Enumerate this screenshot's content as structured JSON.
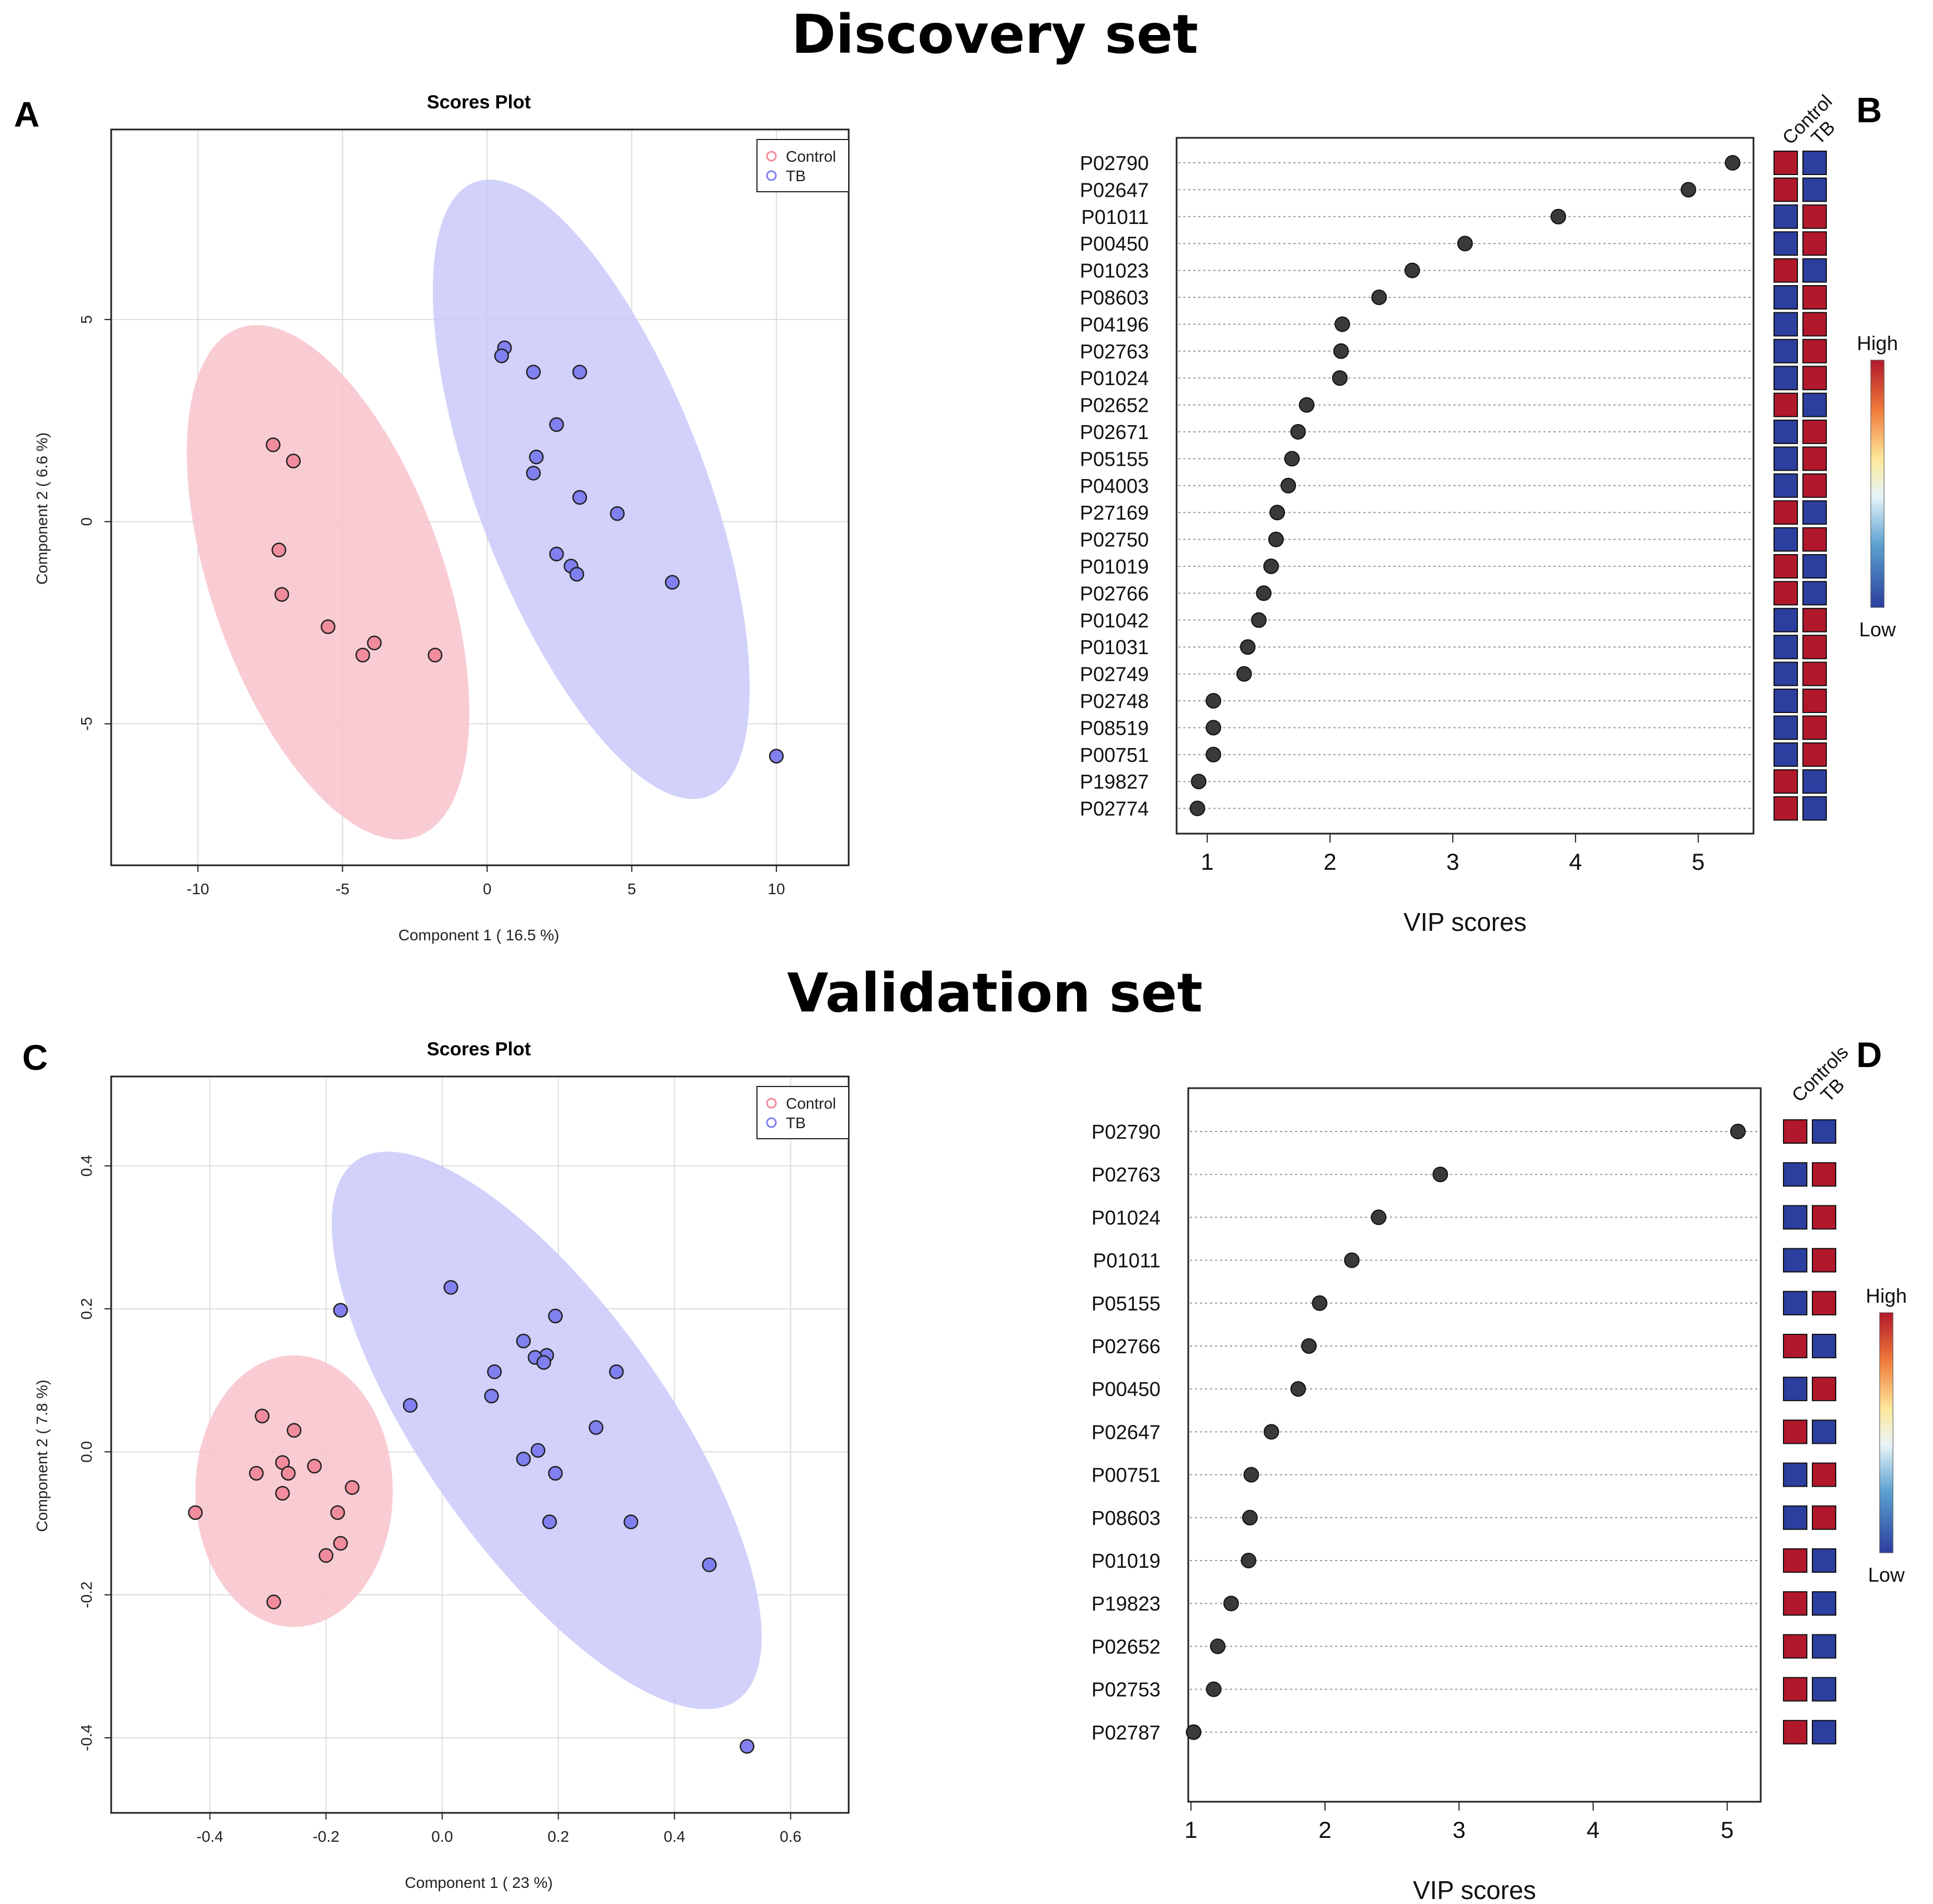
{
  "titles": {
    "discovery": "Discovery set",
    "validation": "Validation set"
  },
  "panel_letters": {
    "A": "A",
    "B": "B",
    "C": "C",
    "D": "D"
  },
  "colors": {
    "control_fill": "#f08c9c",
    "control_ellipse": "#f8c3cd",
    "tb_fill": "#8080f0",
    "tb_ellipse": "#c9c9fa",
    "heat_high": "#b2182b",
    "heat_low": "#2c3e9e",
    "vip_dot": "#3a3a3a"
  },
  "chart_data": [
    {
      "id": "A",
      "type": "scatter",
      "title": "Scores Plot",
      "xlabel": "Component 1 ( 16.5 %)",
      "ylabel": "Component 2 ( 6.6 %)",
      "xlim": [
        -13,
        12.5
      ],
      "ylim": [
        -8.5,
        9.7
      ],
      "xticks": [
        -10,
        -5,
        0,
        5,
        10
      ],
      "yticks": [
        -5,
        0,
        5
      ],
      "legend": [
        "Control",
        "TB"
      ],
      "legend_position": "top-right",
      "series": [
        {
          "name": "Control",
          "ellipse": {
            "center": [
              -5.5,
              -1.5
            ],
            "semi_major": 7.0,
            "semi_minor": 3.7,
            "angle_deg": -64
          },
          "points": [
            [
              -7.4,
              1.9
            ],
            [
              -6.7,
              1.5
            ],
            [
              -7.2,
              -0.7
            ],
            [
              -7.1,
              -1.8
            ],
            [
              -5.5,
              -2.6
            ],
            [
              -3.9,
              -3.0
            ],
            [
              -4.3,
              -3.3
            ],
            [
              -1.8,
              -3.3
            ]
          ]
        },
        {
          "name": "TB",
          "ellipse": {
            "center": [
              3.6,
              0.8
            ],
            "semi_major": 8.6,
            "semi_minor": 3.6,
            "angle_deg": -62
          },
          "points": [
            [
              0.6,
              4.3
            ],
            [
              0.5,
              4.1
            ],
            [
              1.6,
              3.7
            ],
            [
              3.2,
              3.7
            ],
            [
              2.4,
              2.4
            ],
            [
              1.7,
              1.6
            ],
            [
              1.6,
              1.2
            ],
            [
              3.2,
              0.6
            ],
            [
              4.5,
              0.2
            ],
            [
              2.4,
              -0.8
            ],
            [
              2.9,
              -1.1
            ],
            [
              3.1,
              -1.3
            ],
            [
              6.4,
              -1.5
            ],
            [
              10.0,
              -5.8
            ]
          ]
        }
      ]
    },
    {
      "id": "B",
      "type": "dot",
      "xlabel": "VIP scores",
      "xlim": [
        0.75,
        5.45
      ],
      "xticks": [
        1,
        2,
        3,
        4,
        5
      ],
      "heatmap_columns": [
        "Control",
        "TB"
      ],
      "colorbar_labels": [
        "High",
        "Low"
      ],
      "items": [
        {
          "protein": "P02790",
          "vip": 5.28,
          "control": "high",
          "tb": "low"
        },
        {
          "protein": "P02647",
          "vip": 4.92,
          "control": "high",
          "tb": "low"
        },
        {
          "protein": "P01011",
          "vip": 3.86,
          "control": "low",
          "tb": "high"
        },
        {
          "protein": "P00450",
          "vip": 3.1,
          "control": "low",
          "tb": "high"
        },
        {
          "protein": "P01023",
          "vip": 2.67,
          "control": "high",
          "tb": "low"
        },
        {
          "protein": "P08603",
          "vip": 2.4,
          "control": "low",
          "tb": "high"
        },
        {
          "protein": "P04196",
          "vip": 2.1,
          "control": "low",
          "tb": "high"
        },
        {
          "protein": "P02763",
          "vip": 2.09,
          "control": "low",
          "tb": "high"
        },
        {
          "protein": "P01024",
          "vip": 2.08,
          "control": "low",
          "tb": "high"
        },
        {
          "protein": "P02652",
          "vip": 1.81,
          "control": "high",
          "tb": "low"
        },
        {
          "protein": "P02671",
          "vip": 1.74,
          "control": "low",
          "tb": "high"
        },
        {
          "protein": "P05155",
          "vip": 1.69,
          "control": "low",
          "tb": "high"
        },
        {
          "protein": "P04003",
          "vip": 1.66,
          "control": "low",
          "tb": "high"
        },
        {
          "protein": "P27169",
          "vip": 1.57,
          "control": "high",
          "tb": "low"
        },
        {
          "protein": "P02750",
          "vip": 1.56,
          "control": "low",
          "tb": "high"
        },
        {
          "protein": "P01019",
          "vip": 1.52,
          "control": "high",
          "tb": "low"
        },
        {
          "protein": "P02766",
          "vip": 1.46,
          "control": "high",
          "tb": "low"
        },
        {
          "protein": "P01042",
          "vip": 1.42,
          "control": "low",
          "tb": "high"
        },
        {
          "protein": "P01031",
          "vip": 1.33,
          "control": "low",
          "tb": "high"
        },
        {
          "protein": "P02749",
          "vip": 1.3,
          "control": "low",
          "tb": "high"
        },
        {
          "protein": "P02748",
          "vip": 1.05,
          "control": "low",
          "tb": "high"
        },
        {
          "protein": "P08519",
          "vip": 1.05,
          "control": "low",
          "tb": "high"
        },
        {
          "protein": "P00751",
          "vip": 1.05,
          "control": "low",
          "tb": "high"
        },
        {
          "protein": "P19827",
          "vip": 0.93,
          "control": "high",
          "tb": "low"
        },
        {
          "protein": "P02774",
          "vip": 0.92,
          "control": "high",
          "tb": "low"
        }
      ]
    },
    {
      "id": "C",
      "type": "scatter",
      "title": "Scores Plot",
      "xlabel": "Component 1 ( 23 %)",
      "ylabel": "Component 2 ( 7.8 %)",
      "xlim": [
        -0.57,
        0.7
      ],
      "ylim": [
        -0.505,
        0.525
      ],
      "xticks": [
        -0.4,
        -0.2,
        0.0,
        0.2,
        0.4,
        0.6
      ],
      "xtick_labels": [
        "-0.4",
        "-0.2",
        "0.0",
        "0.2",
        "0.4",
        "0.6"
      ],
      "yticks": [
        -0.4,
        -0.2,
        0.0,
        0.2,
        0.4
      ],
      "ytick_labels": [
        "-0.4",
        "-0.2",
        "0.0",
        "0.2",
        "0.4"
      ],
      "legend": [
        "Control",
        "TB"
      ],
      "legend_position": "top-right",
      "series": [
        {
          "name": "Control",
          "ellipse": {
            "center": [
              -0.255,
              -0.055
            ],
            "semi_major": 0.19,
            "semi_minor": 0.17,
            "angle_deg": 90
          },
          "points": [
            [
              -0.31,
              0.05
            ],
            [
              -0.255,
              0.03
            ],
            [
              -0.275,
              -0.015
            ],
            [
              -0.265,
              -0.03
            ],
            [
              -0.32,
              -0.03
            ],
            [
              -0.22,
              -0.02
            ],
            [
              -0.155,
              -0.05
            ],
            [
              -0.275,
              -0.058
            ],
            [
              -0.18,
              -0.085
            ],
            [
              -0.425,
              -0.085
            ],
            [
              -0.175,
              -0.128
            ],
            [
              -0.2,
              -0.145
            ],
            [
              -0.29,
              -0.21
            ]
          ]
        },
        {
          "name": "TB",
          "ellipse": {
            "center": [
              0.18,
              0.03
            ],
            "semi_major": 0.5,
            "semi_minor": 0.19,
            "angle_deg": -49
          },
          "points": [
            [
              -0.175,
              0.198
            ],
            [
              0.015,
              0.23
            ],
            [
              0.195,
              0.19
            ],
            [
              0.14,
              0.155
            ],
            [
              0.18,
              0.135
            ],
            [
              0.16,
              0.132
            ],
            [
              0.175,
              0.125
            ],
            [
              0.09,
              0.112
            ],
            [
              0.3,
              0.112
            ],
            [
              0.085,
              0.078
            ],
            [
              -0.055,
              0.065
            ],
            [
              0.265,
              0.034
            ],
            [
              0.165,
              0.002
            ],
            [
              0.14,
              -0.01
            ],
            [
              0.195,
              -0.03
            ],
            [
              0.185,
              -0.098
            ],
            [
              0.325,
              -0.098
            ],
            [
              0.46,
              -0.158
            ],
            [
              0.525,
              -0.412
            ]
          ]
        }
      ]
    },
    {
      "id": "D",
      "type": "dot",
      "xlabel": "VIP scores",
      "xlim": [
        0.98,
        5.25
      ],
      "xticks": [
        1,
        2,
        3,
        4,
        5
      ],
      "heatmap_columns": [
        "Controls",
        "TB"
      ],
      "colorbar_labels": [
        "High",
        "Low"
      ],
      "items": [
        {
          "protein": "P02790",
          "vip": 5.08,
          "control": "high",
          "tb": "low"
        },
        {
          "protein": "P02763",
          "vip": 2.86,
          "control": "low",
          "tb": "high"
        },
        {
          "protein": "P01024",
          "vip": 2.4,
          "control": "low",
          "tb": "high"
        },
        {
          "protein": "P01011",
          "vip": 2.2,
          "control": "low",
          "tb": "high"
        },
        {
          "protein": "P05155",
          "vip": 1.96,
          "control": "low",
          "tb": "high"
        },
        {
          "protein": "P02766",
          "vip": 1.88,
          "control": "high",
          "tb": "low"
        },
        {
          "protein": "P00450",
          "vip": 1.8,
          "control": "low",
          "tb": "high"
        },
        {
          "protein": "P02647",
          "vip": 1.6,
          "control": "high",
          "tb": "low"
        },
        {
          "protein": "P00751",
          "vip": 1.45,
          "control": "low",
          "tb": "high"
        },
        {
          "protein": "P08603",
          "vip": 1.44,
          "control": "low",
          "tb": "high"
        },
        {
          "protein": "P01019",
          "vip": 1.43,
          "control": "high",
          "tb": "low"
        },
        {
          "protein": "P19823",
          "vip": 1.3,
          "control": "high",
          "tb": "low"
        },
        {
          "protein": "P02652",
          "vip": 1.2,
          "control": "high",
          "tb": "low"
        },
        {
          "protein": "P02753",
          "vip": 1.17,
          "control": "high",
          "tb": "low"
        },
        {
          "protein": "P02787",
          "vip": 1.02,
          "control": "high",
          "tb": "low"
        }
      ]
    }
  ]
}
